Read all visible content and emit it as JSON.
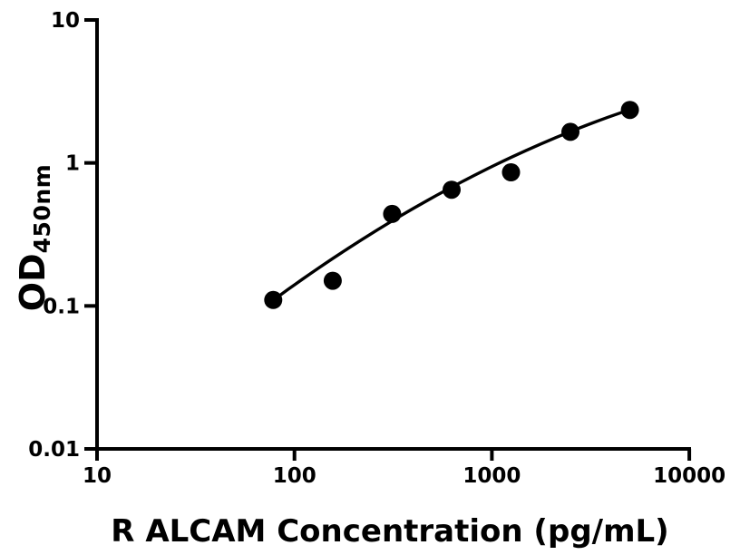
{
  "figure": {
    "background_color": "#ffffff",
    "foreground_color": "#000000"
  },
  "chart_data": {
    "type": "scatter",
    "title": "",
    "xlabel": "R ALCAM Concentration (pg/mL)",
    "ylabel_main": "OD",
    "ylabel_sub": "450nm",
    "x_scale": "log10",
    "y_scale": "log10",
    "xlim": [
      10,
      10000
    ],
    "ylim": [
      0.01,
      10
    ],
    "x_ticks": [
      10,
      100,
      1000,
      10000
    ],
    "x_tick_labels": [
      "10",
      "100",
      "1000",
      "10000"
    ],
    "y_ticks": [
      0.01,
      0.1,
      1,
      10
    ],
    "y_tick_labels": [
      "0.01",
      "0.1",
      "1",
      "10"
    ],
    "grid": false,
    "legend": false,
    "series": [
      {
        "name": "standard-curve-points",
        "points": [
          {
            "x": 78.1,
            "y": 0.11
          },
          {
            "x": 156.3,
            "y": 0.15
          },
          {
            "x": 312.5,
            "y": 0.44
          },
          {
            "x": 625,
            "y": 0.65
          },
          {
            "x": 1250,
            "y": 0.86
          },
          {
            "x": 2500,
            "y": 1.65
          },
          {
            "x": 5000,
            "y": 2.35
          }
        ]
      }
    ],
    "trendline": {
      "model": "quadratic_in_loglog",
      "description": "log10(OD) = a + b*u + c*u^2, u = log10(concentration)",
      "a": -3.415,
      "b": 1.584,
      "c": -0.1514,
      "u_start": 1.8928,
      "u_end": 3.699
    },
    "marker": {
      "shape": "circle",
      "color": "#000000",
      "radius_px": 10
    },
    "line_color": "#000000",
    "axis_color": "#000000"
  }
}
